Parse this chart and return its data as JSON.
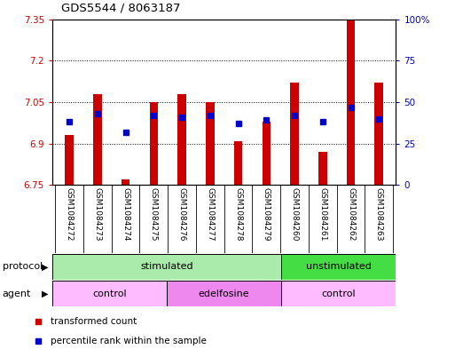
{
  "title": "GDS5544 / 8063187",
  "samples": [
    "GSM1084272",
    "GSM1084273",
    "GSM1084274",
    "GSM1084275",
    "GSM1084276",
    "GSM1084277",
    "GSM1084278",
    "GSM1084279",
    "GSM1084260",
    "GSM1084261",
    "GSM1084262",
    "GSM1084263"
  ],
  "bar_values": [
    6.93,
    7.08,
    6.77,
    7.05,
    7.08,
    7.05,
    6.91,
    6.98,
    7.12,
    6.87,
    7.35,
    7.12
  ],
  "percentile_values": [
    38,
    43,
    32,
    42,
    41,
    42,
    37,
    39,
    42,
    38,
    47,
    40
  ],
  "bar_bottom": 6.75,
  "ylim_left": [
    6.75,
    7.35
  ],
  "ylim_right": [
    0,
    100
  ],
  "yticks_left": [
    6.75,
    6.9,
    7.05,
    7.2,
    7.35
  ],
  "yticks_right": [
    0,
    25,
    50,
    75,
    100
  ],
  "ytick_labels_left": [
    "6.75",
    "6.9",
    "7.05",
    "7.2",
    "7.35"
  ],
  "ytick_labels_right": [
    "0",
    "25",
    "50",
    "75",
    "100%"
  ],
  "bar_color": "#cc0000",
  "dot_color": "#0000cc",
  "protocol_row": [
    {
      "label": "stimulated",
      "start": 0,
      "end": 8,
      "color": "#aaeaaa"
    },
    {
      "label": "unstimulated",
      "start": 8,
      "end": 12,
      "color": "#44dd44"
    }
  ],
  "agent_row": [
    {
      "label": "control",
      "start": 0,
      "end": 4,
      "color": "#ffbbff"
    },
    {
      "label": "edelfosine",
      "start": 4,
      "end": 8,
      "color": "#ee88ee"
    },
    {
      "label": "control",
      "start": 8,
      "end": 12,
      "color": "#ffbbff"
    }
  ],
  "legend": [
    {
      "label": "transformed count",
      "color": "#cc0000"
    },
    {
      "label": "percentile rank within the sample",
      "color": "#0000cc"
    }
  ],
  "bg_color": "#ffffff",
  "label_bg": "#cccccc",
  "bar_width": 0.3,
  "left_tick_color": "#cc0000",
  "right_tick_color": "#0000bb"
}
